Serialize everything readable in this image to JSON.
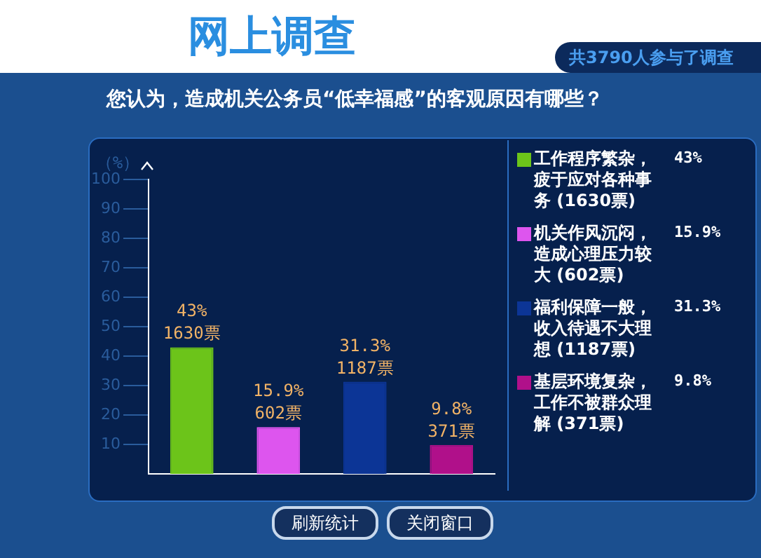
{
  "chart_data": {
    "type": "bar",
    "title": "网上调查",
    "subtitle": "您认为，造成机关公务员“低幸福感”的客观原因有哪些？",
    "ylabel": "（%）",
    "categories": [
      null,
      null,
      null,
      null
    ],
    "series": [
      {
        "name": "工作程序繁杂，疲于应对各种事务 (1630票)",
        "color": "#6cc41a",
        "values": [
          43,
          null,
          null,
          null
        ],
        "value_labels": [
          "43% 1630票",
          null,
          null,
          null
        ]
      },
      {
        "name": "机关作风沉闷，造成心理压力较大 (602票)",
        "color": "#dd55ee",
        "values": [
          null,
          15.9,
          null,
          null
        ],
        "value_labels": [
          null,
          "15.9% 602票",
          null,
          null
        ]
      },
      {
        "name": "福利保障一般，收入待遇不大理想 (1187票)",
        "color": "#0c3596",
        "values": [
          null,
          null,
          31.3,
          null
        ],
        "value_labels": [
          null,
          null,
          "31.3% 1187票",
          null
        ]
      },
      {
        "name": "基层环境复杂，工作不被群众理解 (371票)",
        "color": "#b0108a",
        "values": [
          null,
          null,
          null,
          9.8
        ],
        "value_labels": [
          null,
          null,
          null,
          "9.8% 371票"
        ]
      }
    ],
    "ylim": [
      0,
      100
    ],
    "yticks": [
      10,
      20,
      30,
      40,
      50,
      60,
      70,
      80,
      90,
      100
    ],
    "grid": false,
    "legend": "right",
    "tick_labels": "y",
    "annotations": [
      "共3790人参与了调查",
      "43%",
      "15.9%",
      "31.3%",
      "9.8%",
      "刷新统计",
      "关闭窗口"
    ]
  }
}
